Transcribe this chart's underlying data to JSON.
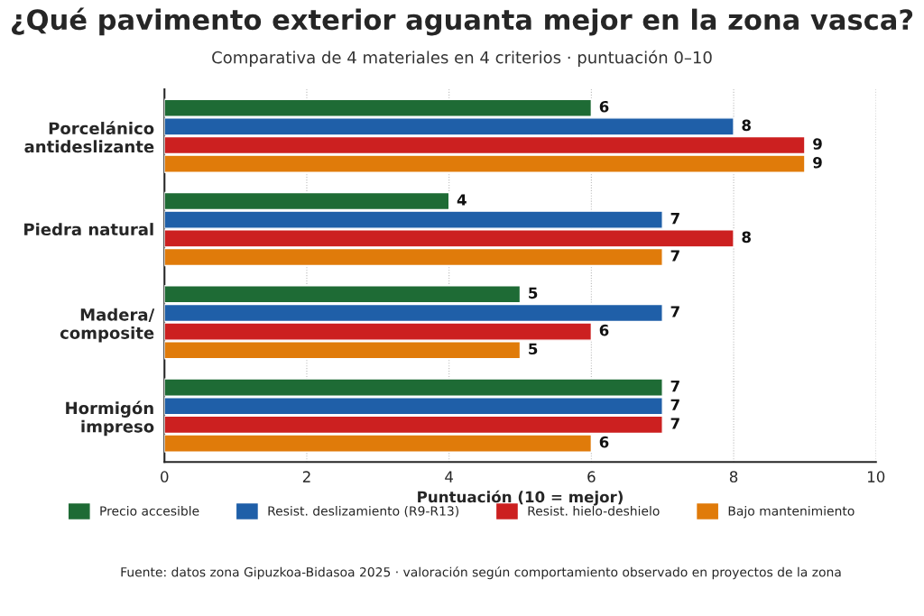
{
  "chart_data": {
    "type": "bar",
    "orientation": "horizontal",
    "title": "¿Qué pavimento exterior aguanta mejor en la zona vasca?",
    "subtitle": "Comparativa de 4 materiales en 4 criterios · puntuación 0–10",
    "xlabel": "Puntuación (10 = mejor)",
    "categories": [
      "Porcelánico\nantideslizante",
      "Piedra natural",
      "Madera/\ncomposite",
      "Hormigón\nimpreso"
    ],
    "series": [
      {
        "name": "Precio accesible",
        "color": "#1e6b35",
        "values": [
          6,
          4,
          5,
          7
        ]
      },
      {
        "name": "Resist. deslizamiento (R9-R13)",
        "color": "#1f5fa8",
        "values": [
          8,
          7,
          7,
          7
        ]
      },
      {
        "name": "Resist. hielo-deshielo",
        "color": "#cc2020",
        "values": [
          9,
          8,
          6,
          7
        ]
      },
      {
        "name": "Bajo mantenimiento",
        "color": "#e07b0a",
        "values": [
          9,
          7,
          5,
          6
        ]
      }
    ],
    "xlim": [
      0,
      10
    ],
    "xticks": [
      0,
      2,
      4,
      6,
      8,
      10
    ],
    "grid": "x",
    "legend": "bottom",
    "data_labels": true,
    "annotations": [
      "Fuente: datos zona Gipuzkoa-Bidasoa 2025 · valoración según comportamiento observado en proyectos de la zona"
    ]
  }
}
